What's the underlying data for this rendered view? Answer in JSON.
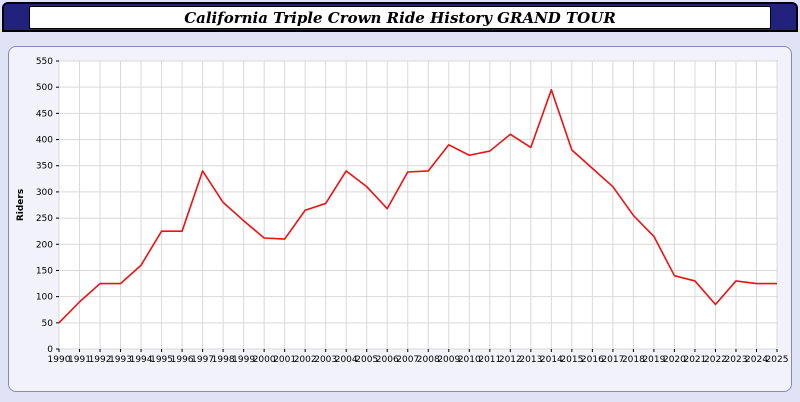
{
  "header": {
    "title": "California Triple Crown Ride History GRAND TOUR"
  },
  "chart_data": {
    "type": "line",
    "x": [
      1990,
      1991,
      1992,
      1993,
      1994,
      1995,
      1996,
      1997,
      1998,
      1999,
      2000,
      2001,
      2002,
      2003,
      2004,
      2005,
      2006,
      2007,
      2008,
      2009,
      2010,
      2011,
      2012,
      2013,
      2014,
      2015,
      2016,
      2017,
      2018,
      2019,
      2020,
      2021,
      2022,
      2023,
      2024,
      2025
    ],
    "series": [
      {
        "name": "Riders",
        "values": [
          50,
          90,
          125,
          125,
          160,
          225,
          225,
          340,
          280,
          245,
          212,
          210,
          265,
          278,
          340,
          310,
          268,
          338,
          340,
          390,
          370,
          378,
          410,
          385,
          495,
          380,
          345,
          310,
          255,
          215,
          140,
          130,
          85,
          130,
          125,
          125
        ]
      }
    ],
    "title": "",
    "xlabel": "",
    "ylabel": "Riders",
    "ylim": [
      0,
      550
    ],
    "ytick_step": 50,
    "grid": true,
    "legend_position": "none",
    "line_color": "#ee1111",
    "grid_color": "#d9d9d9",
    "plot_bg": "#ffffff",
    "axis_color": "#808080"
  }
}
